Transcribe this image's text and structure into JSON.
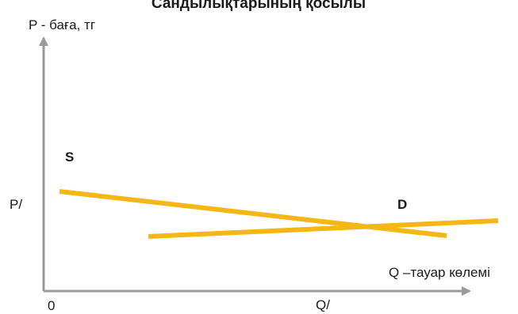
{
  "title": "Сандылықтарының қосылы",
  "y_axis_label": "P - баға, тг",
  "x_axis_label": "Q –тауар көлемі",
  "origin_label": "0",
  "price_marker": "P/",
  "quantity_marker": "Q/",
  "curve_s_label": "S",
  "curve_d_label": "D",
  "colors": {
    "axis": "#9a9a9a",
    "curve": "#f5b716",
    "text": "#1a1a1a"
  }
}
